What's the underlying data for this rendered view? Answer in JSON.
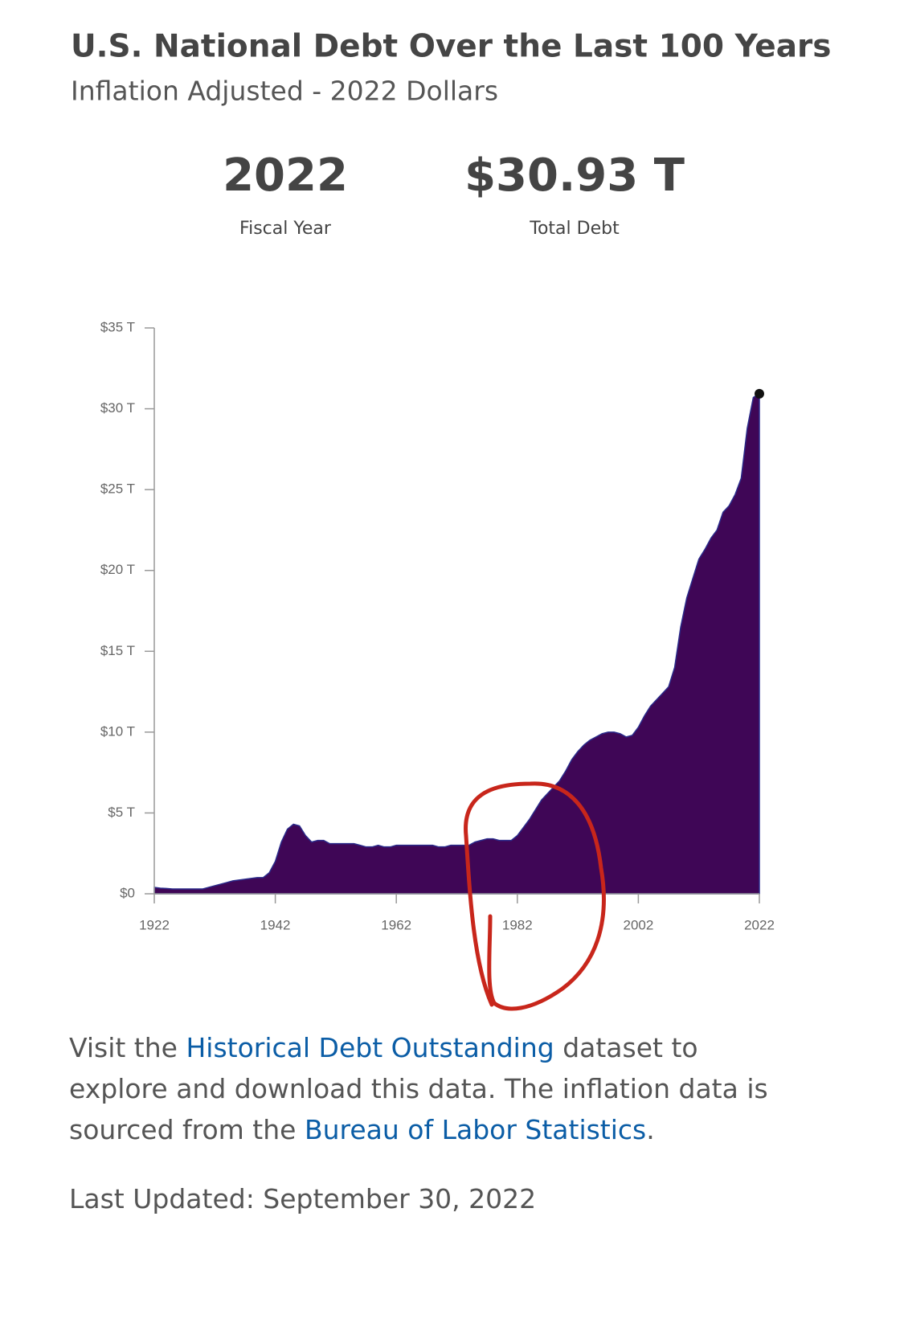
{
  "chart_data": {
    "type": "area",
    "title": "U.S. National Debt Over the Last 100 Years",
    "subtitle": "Inflation Adjusted - 2022 Dollars",
    "callout": {
      "year": "2022",
      "year_caption": "Fiscal Year",
      "value": "$30.93 T",
      "value_caption": "Total Debt"
    },
    "x": [
      1922,
      1923,
      1924,
      1925,
      1926,
      1927,
      1928,
      1929,
      1930,
      1931,
      1932,
      1933,
      1934,
      1935,
      1936,
      1937,
      1938,
      1939,
      1940,
      1941,
      1942,
      1943,
      1944,
      1945,
      1946,
      1947,
      1948,
      1949,
      1950,
      1951,
      1952,
      1953,
      1954,
      1955,
      1956,
      1957,
      1958,
      1959,
      1960,
      1961,
      1962,
      1963,
      1964,
      1965,
      1966,
      1967,
      1968,
      1969,
      1970,
      1971,
      1972,
      1973,
      1974,
      1975,
      1976,
      1977,
      1978,
      1979,
      1980,
      1981,
      1982,
      1983,
      1984,
      1985,
      1986,
      1987,
      1988,
      1989,
      1990,
      1991,
      1992,
      1993,
      1994,
      1995,
      1996,
      1997,
      1998,
      1999,
      2000,
      2001,
      2002,
      2003,
      2004,
      2005,
      2006,
      2007,
      2008,
      2009,
      2010,
      2011,
      2012,
      2013,
      2014,
      2015,
      2016,
      2017,
      2018,
      2019,
      2020,
      2021,
      2022
    ],
    "series": [
      {
        "name": "Total Debt",
        "color": "#3f0656",
        "values": [
          0.4,
          0.35,
          0.33,
          0.3,
          0.3,
          0.3,
          0.3,
          0.3,
          0.3,
          0.4,
          0.5,
          0.6,
          0.7,
          0.8,
          0.85,
          0.9,
          0.95,
          1.0,
          1.0,
          1.3,
          2.0,
          3.2,
          4.0,
          4.3,
          4.2,
          3.6,
          3.2,
          3.3,
          3.3,
          3.1,
          3.1,
          3.1,
          3.1,
          3.1,
          3.0,
          2.9,
          2.9,
          3.0,
          2.9,
          2.9,
          3.0,
          3.0,
          3.0,
          3.0,
          3.0,
          3.0,
          3.0,
          2.9,
          2.9,
          3.0,
          3.0,
          3.0,
          3.0,
          3.2,
          3.3,
          3.4,
          3.4,
          3.3,
          3.3,
          3.3,
          3.6,
          4.1,
          4.6,
          5.2,
          5.8,
          6.2,
          6.6,
          7.0,
          7.6,
          8.3,
          8.8,
          9.2,
          9.5,
          9.7,
          9.9,
          10.0,
          10.0,
          9.9,
          9.7,
          9.8,
          10.3,
          11.0,
          11.6,
          12.0,
          12.4,
          12.8,
          14.0,
          16.5,
          18.3,
          19.5,
          20.7,
          21.3,
          22.0,
          22.5,
          23.6,
          24.0,
          24.7,
          25.7,
          28.8,
          30.7,
          30.93
        ]
      }
    ],
    "xlim": [
      1922,
      2022
    ],
    "xticks": [
      1922,
      1942,
      1962,
      1982,
      2002,
      2022
    ],
    "ylim": [
      0,
      35
    ],
    "yticks": [
      {
        "value": 0,
        "label": "$0"
      },
      {
        "value": 5,
        "label": "$5 T"
      },
      {
        "value": 10,
        "label": "$10 T"
      },
      {
        "value": 15,
        "label": "$15 T"
      },
      {
        "value": 20,
        "label": "$20 T"
      },
      {
        "value": 25,
        "label": "$25 T"
      },
      {
        "value": 30,
        "label": "$30 T"
      },
      {
        "value": 35,
        "label": "$35 T"
      }
    ]
  },
  "footer": {
    "parts": [
      "Visit the ",
      "Historical Debt Outstanding",
      " dataset to explore and download this data. The inflation data is sourced from the ",
      "Bureau of Labor Statistics",
      "."
    ],
    "last_updated": "Last Updated: September 30, 2022"
  }
}
